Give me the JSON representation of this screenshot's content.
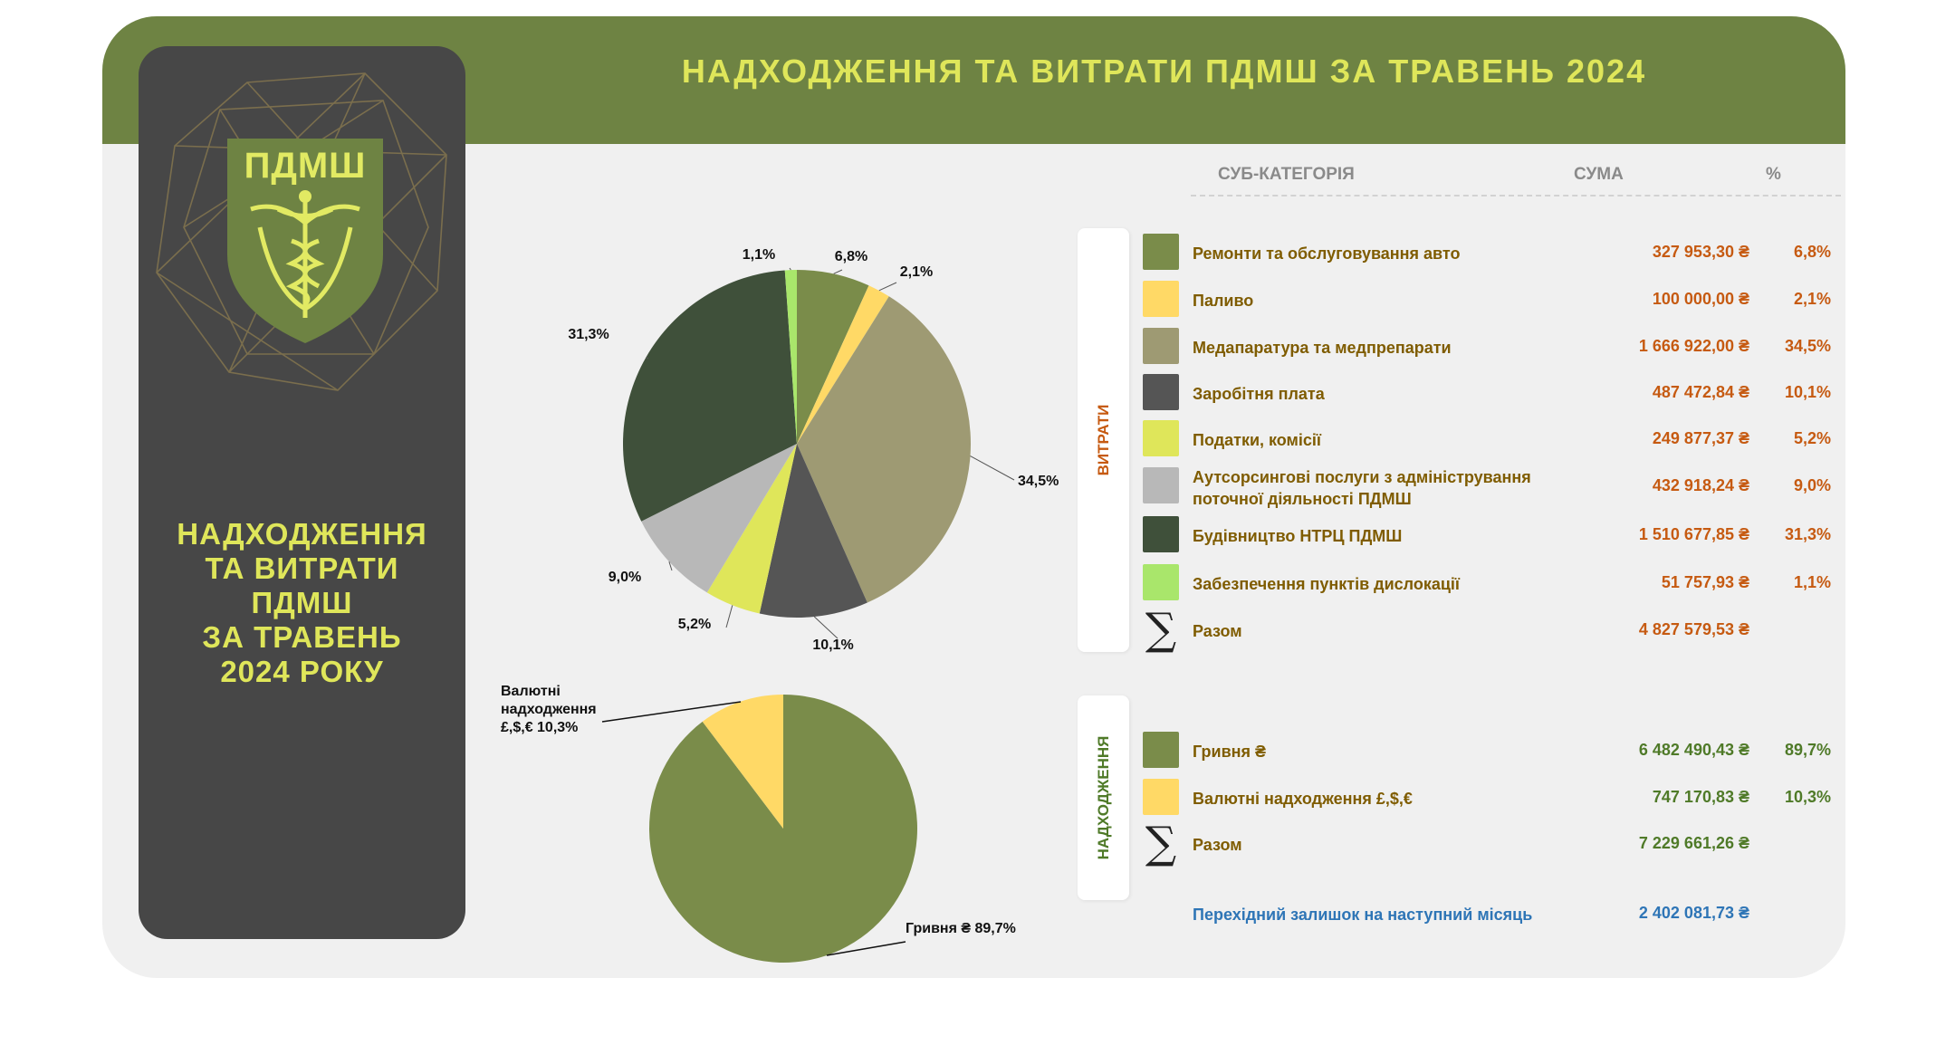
{
  "header": {
    "title": "НАДХОДЖЕННЯ ТА ВИТРАТИ ПДМШ ЗА ТРАВЕНЬ 2024"
  },
  "sidebar": {
    "logo_text": "ПДМШ",
    "title_lines": [
      "НАДХОДЖЕННЯ",
      "ТА ВИТРАТИ",
      "ПДМШ",
      "ЗА ТРАВЕНЬ",
      "2024 РОКУ"
    ]
  },
  "table": {
    "headers": {
      "subcategory": "СУБ-КАТЕГОРІЯ",
      "sum": "СУМА",
      "percent": "%"
    },
    "expenses": {
      "section_label": "ВИТРАТИ",
      "rows": [
        {
          "name": "Ремонти та обслуговування авто",
          "amount": "327 953,30 ₴",
          "percent": "6,8%",
          "color": "#7a8c4a"
        },
        {
          "name": "Паливо",
          "amount": "100 000,00 ₴",
          "percent": "2,1%",
          "color": "#ffd966"
        },
        {
          "name": "Медапаратура та медпрепарати",
          "amount": "1 666 922,00 ₴",
          "percent": "34,5%",
          "color": "#9e9a73"
        },
        {
          "name": "Заробітня плата",
          "amount": "487 472,84 ₴",
          "percent": "10,1%",
          "color": "#555555"
        },
        {
          "name": "Податки, комісії",
          "amount": "249 877,37 ₴",
          "percent": "5,2%",
          "color": "#dfe65a"
        },
        {
          "name_line1": "Аутсорсингові послуги з адміністрування",
          "name_line2": "поточної діяльності ПДМШ",
          "amount": "432 918,24 ₴",
          "percent": "9,0%",
          "color": "#b8b8b8"
        },
        {
          "name": "Будівництво НТРЦ ПДМШ",
          "amount": "1 510 677,85 ₴",
          "percent": "31,3%",
          "color": "#3f503a"
        },
        {
          "name": "Забезпечення пунктів дислокації",
          "amount": "51 757,93 ₴",
          "percent": "1,1%",
          "color": "#a9e66b"
        }
      ],
      "total": {
        "name": "Разом",
        "amount": "4 827 579,53 ₴",
        "icon": "sigma-icon"
      }
    },
    "income": {
      "section_label": "НАДХОДЖЕННЯ",
      "rows": [
        {
          "name": "Гривня ₴",
          "amount": "6 482 490,43 ₴",
          "percent": "89,7%",
          "color": "#7a8c4a"
        },
        {
          "name": "Валютні надходження £,$,€",
          "amount": "747 170,83 ₴",
          "percent": "10,3%",
          "color": "#ffd966"
        }
      ],
      "total": {
        "name": "Разом",
        "amount": "7 229 661,26 ₴",
        "icon": "sigma-icon"
      }
    },
    "carryover": {
      "name": "Перехідний залишок на наступний місяць",
      "amount": "2 402 081,73 ₴"
    }
  },
  "colors": {
    "banner": "#6e8343",
    "accent_yellow": "#dfe65a",
    "expense_amount": "#c65a11",
    "income_amount": "#4f7a28",
    "carryover": "#2e75b6",
    "name_text": "#7f5c00"
  },
  "chart_data": [
    {
      "type": "pie",
      "title": "",
      "labels": [
        "Ремонти та обслуговування авто",
        "Паливо",
        "Медапаратура та медпрепарати",
        "Заробітня плата",
        "Податки, комісії",
        "Аутсорсингові послуги з адміністрування поточної діяльності ПДМШ",
        "Будівництво НТРЦ ПДМШ",
        "Забезпечення пунктів дислокації"
      ],
      "values": [
        6.8,
        2.1,
        34.5,
        10.1,
        5.2,
        9.0,
        31.3,
        1.1
      ],
      "data_labels": [
        "6,8%",
        "2,1%",
        "34,5%",
        "10,1%",
        "5,2%",
        "9,0%",
        "31,3%",
        "1,1%"
      ],
      "colors": [
        "#7a8c4a",
        "#ffd966",
        "#9e9a73",
        "#555555",
        "#dfe65a",
        "#b8b8b8",
        "#3f503a",
        "#a9e66b"
      ]
    },
    {
      "type": "pie",
      "title": "",
      "labels": [
        "Гривня ₴",
        "Валютні надходження £,$,€"
      ],
      "values": [
        89.7,
        10.3
      ],
      "data_labels": [
        "Гривня ₴ 89,7%",
        "Валютні надходження £,$,€ 10,3%"
      ],
      "label_lines": [
        [
          "Гривня ₴ 89,7%"
        ],
        [
          "Валютні",
          "надходження",
          "£,$,€ 10,3%"
        ]
      ],
      "colors": [
        "#7a8c4a",
        "#ffd966"
      ]
    }
  ]
}
